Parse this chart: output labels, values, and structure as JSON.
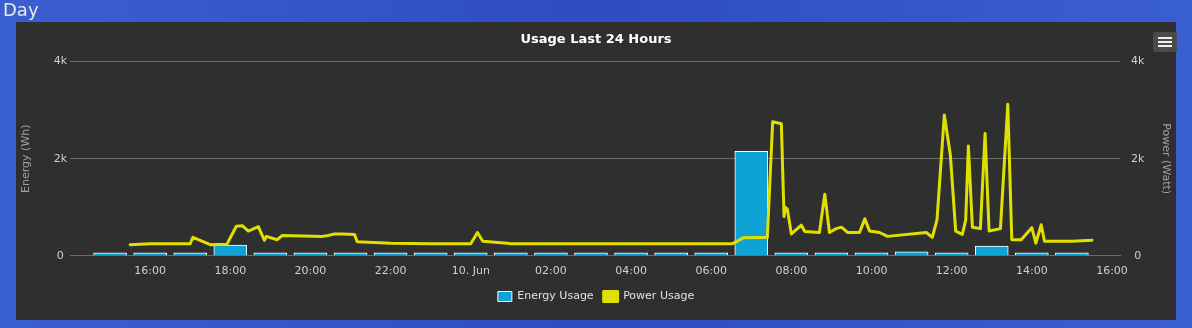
{
  "chart_data": {
    "type": "bar",
    "title": "Usage Last 24 Hours",
    "annotations": [
      "Day"
    ],
    "ylabel": "Energy (Wh)",
    "y2label": "Power (Watt)",
    "xlim": [
      "--06-09T14:00",
      "--06-10T16:12"
    ],
    "xticks": [
      {
        "value": "--06-09T16:00",
        "label": "16:00"
      },
      {
        "value": "--06-09T18:00",
        "label": "18:00"
      },
      {
        "value": "--06-09T20:00",
        "label": "20:00"
      },
      {
        "value": "--06-09T22:00",
        "label": "22:00"
      },
      {
        "value": "--06-10T00:00",
        "label": "10. Jun"
      },
      {
        "value": "--06-10T02:00",
        "label": "02:00"
      },
      {
        "value": "--06-10T04:00",
        "label": "04:00"
      },
      {
        "value": "--06-10T06:00",
        "label": "06:00"
      },
      {
        "value": "--06-10T08:00",
        "label": "08:00"
      },
      {
        "value": "--06-10T10:00",
        "label": "10:00"
      },
      {
        "value": "--06-10T12:00",
        "label": "12:00"
      },
      {
        "value": "--06-10T14:00",
        "label": "14:00"
      },
      {
        "value": "--06-10T16:00",
        "label": "16:00"
      }
    ],
    "ylim": [
      0,
      4000
    ],
    "yticks": [
      0,
      {
        "value": 2000,
        "label": "2k"
      },
      {
        "value": 4000,
        "label": "4k"
      }
    ],
    "y2lim": [
      0,
      4000
    ],
    "y2ticks": [
      0,
      {
        "value": 2000,
        "label": "2k"
      },
      {
        "value": 4000,
        "label": "4k"
      }
    ],
    "grid": "y",
    "legend": "bottom",
    "series": [
      {
        "name": "Energy Usage",
        "axis": "y",
        "color": "#0fa3d5",
        "x": [
          "--06-09T15:00",
          "--06-09T16:00",
          "--06-09T17:00",
          "--06-09T18:00",
          "--06-09T19:00",
          "--06-09T20:00",
          "--06-09T21:00",
          "--06-09T22:00",
          "--06-09T23:00",
          "--06-10T00:00",
          "--06-10T01:00",
          "--06-10T02:00",
          "--06-10T03:00",
          "--06-10T04:00",
          "--06-10T05:00",
          "--06-10T06:00",
          "--06-10T07:00",
          "--06-10T08:00",
          "--06-10T09:00",
          "--06-10T10:00",
          "--06-10T11:00",
          "--06-10T12:00",
          "--06-10T13:00",
          "--06-10T14:00",
          "--06-10T15:00"
        ],
        "values": [
          60,
          60,
          60,
          220,
          60,
          60,
          60,
          60,
          60,
          60,
          60,
          60,
          60,
          60,
          60,
          60,
          2150,
          60,
          60,
          60,
          80,
          60,
          200,
          60,
          60
        ]
      },
      {
        "name": "Power Usage",
        "type": "line",
        "axis": "y2",
        "color": "#e0e000",
        "x": [
          "--06-09T15:30",
          "--06-09T16:00",
          "--06-09T17:00",
          "--06-09T17:04",
          "--06-09T17:30",
          "--06-09T17:55",
          "--06-09T18:09",
          "--06-09T18:18",
          "--06-09T18:27",
          "--06-09T18:42",
          "--06-09T18:51",
          "--06-09T18:54",
          "--06-09T19:10",
          "--06-09T19:18",
          "--06-09T20:18",
          "--06-09T20:27",
          "--06-09T20:36",
          "--06-09T20:48",
          "--06-09T21:06",
          "--06-09T21:10",
          "--06-09T22:00",
          "--06-09T23:00",
          "--06-10T00:00",
          "--06-10T00:10",
          "--06-10T00:18",
          "--06-10T01:00",
          "--06-10T02:00",
          "--06-10T03:00",
          "--06-10T04:00",
          "--06-10T05:00",
          "--06-10T06:00",
          "--06-10T06:32",
          "--06-10T06:48",
          "--06-10T07:24",
          "--06-10T07:32",
          "--06-10T07:45",
          "--06-10T07:49",
          "--06-10T07:51",
          "--06-10T07:54",
          "--06-10T08:00",
          "--06-10T08:15",
          "--06-10T08:20",
          "--06-10T08:42",
          "--06-10T08:50",
          "--06-10T08:57",
          "--06-10T09:07",
          "--06-10T09:15",
          "--06-10T09:24",
          "--06-10T09:42",
          "--06-10T09:50",
          "--06-10T09:57",
          "--06-10T10:12",
          "--06-10T10:24",
          "--06-10T11:22",
          "--06-10T11:31",
          "--06-10T11:38",
          "--06-10T11:49",
          "--06-10T11:58",
          "--06-10T12:06",
          "--06-10T12:16",
          "--06-10T12:21",
          "--06-10T12:25",
          "--06-10T12:31",
          "--06-10T12:43",
          "--06-10T12:50",
          "--06-10T12:56",
          "--06-10T13:13",
          "--06-10T13:24",
          "--06-10T13:30",
          "--06-10T13:44",
          "--06-10T14:00",
          "--06-10T14:06",
          "--06-10T14:14",
          "--06-10T14:19",
          "--06-10T15:00",
          "--06-10T15:30"
        ],
        "values": [
          230,
          250,
          250,
          380,
          230,
          240,
          610,
          620,
          510,
          600,
          320,
          400,
          330,
          420,
          400,
          420,
          450,
          450,
          440,
          290,
          260,
          250,
          250,
          480,
          300,
          250,
          250,
          250,
          250,
          250,
          250,
          250,
          370,
          380,
          2760,
          2720,
          810,
          1000,
          960,
          450,
          630,
          500,
          480,
          1270,
          480,
          560,
          590,
          480,
          480,
          760,
          510,
          480,
          400,
          480,
          380,
          740,
          2900,
          2080,
          510,
          440,
          740,
          2260,
          590,
          560,
          2520,
          510,
          560,
          3120,
          330,
          330,
          580,
          260,
          640,
          300,
          300,
          320
        ]
      }
    ]
  }
}
